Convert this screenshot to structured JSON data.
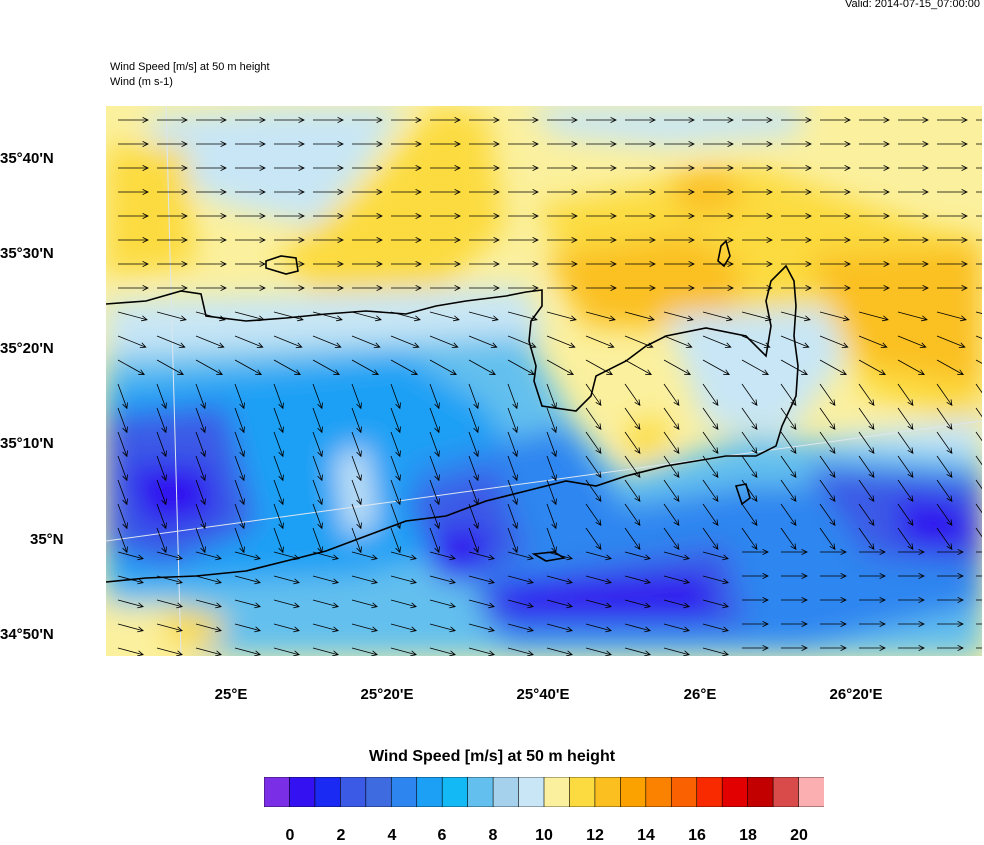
{
  "valid": "Valid: 2014-07-15_07:00:00",
  "title_line1": "Wind Speed [m/s] at 50 m height",
  "title_line2": "Wind    (m s-1)",
  "colorbar_title": "Wind Speed [m/s] at 50 m height",
  "lat_labels": [
    "35°40'N",
    "35°30'N",
    "35°20'N",
    "35°10'N",
    "35°N",
    "34°50'N"
  ],
  "lon_labels": [
    "25°E",
    "25°20'E",
    "25°40'E",
    "26°E",
    "26°20'E"
  ],
  "colorbar_labels": [
    "0",
    "2",
    "4",
    "6",
    "8",
    "10",
    "12",
    "14",
    "16",
    "18",
    "20"
  ],
  "colorbar_colors": [
    "#7a2ee6",
    "#3311f0",
    "#1a2af2",
    "#3b5ae6",
    "#3f6be0",
    "#2d86f0",
    "#1ca0f5",
    "#12b9f5",
    "#63c0ee",
    "#a5d1ec",
    "#c8e6f5",
    "#fbf09e",
    "#fcdb41",
    "#fbc020",
    "#fba200",
    "#fb8200",
    "#fa6100",
    "#f92a00",
    "#e30000",
    "#c20000",
    "#d94a4a",
    "#fcafb0"
  ],
  "wind_field": {
    "fill_colors": [
      "#3311f0",
      "#3b5ae6",
      "#2d86f0",
      "#1ca0f5",
      "#63c0ee",
      "#a5d1ec",
      "#c8e6f5",
      "#fbf09e",
      "#fcdb41",
      "#fbc020"
    ]
  }
}
